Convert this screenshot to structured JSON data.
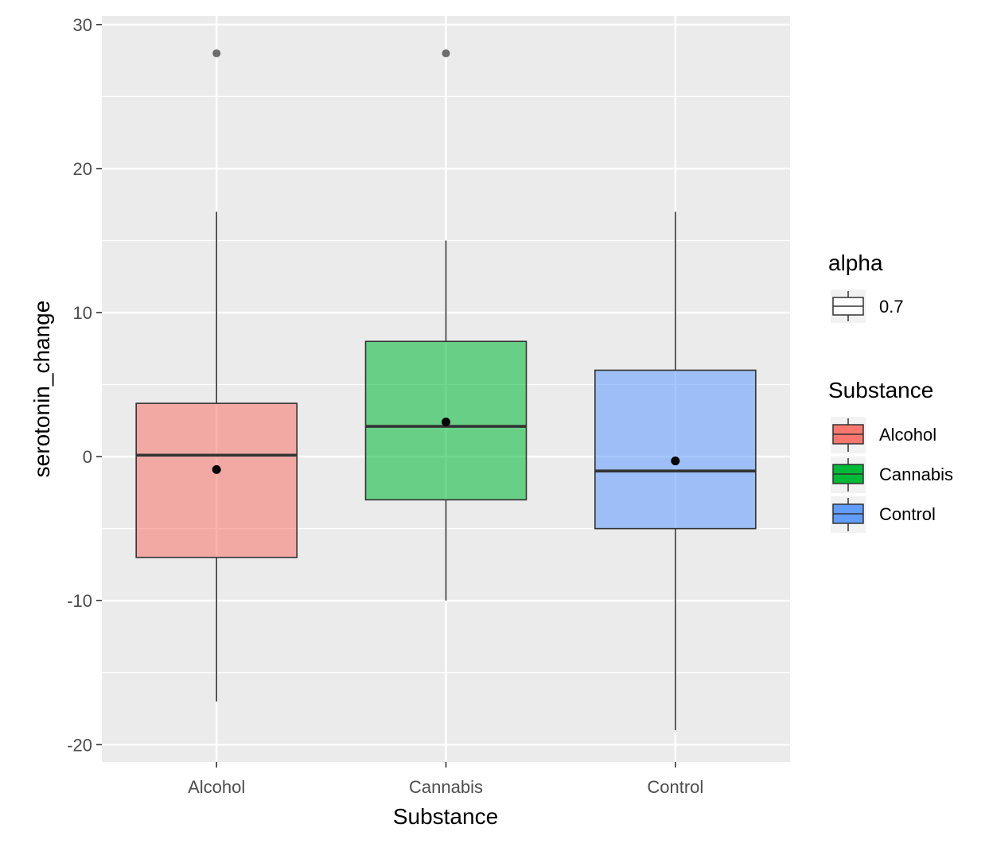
{
  "chart_data": {
    "type": "boxplot",
    "title": "",
    "xlabel": "Substance",
    "ylabel": "serotonin_change",
    "ylim": [
      -21.2,
      30.6
    ],
    "y_ticks": [
      -20,
      -10,
      0,
      10,
      20,
      30
    ],
    "y_tick_labels": [
      "-20",
      "-10",
      "0",
      "10",
      "20",
      "30"
    ],
    "grid": true,
    "background": "#ebebeb",
    "categories": [
      "Alcohol",
      "Cannabis",
      "Control"
    ],
    "boxes": [
      {
        "category": "Alcohol",
        "whisker_low": -17,
        "q1": -7,
        "median": 0.1,
        "q3": 3.7,
        "whisker_high": 17,
        "mean": -0.9,
        "outliers": [
          28
        ],
        "color": "#f8766d"
      },
      {
        "category": "Cannabis",
        "whisker_low": -10,
        "q1": -3,
        "median": 2.1,
        "q3": 8,
        "whisker_high": 15,
        "mean": 2.4,
        "outliers": [
          28
        ],
        "color": "#00ba38"
      },
      {
        "category": "Control",
        "whisker_low": -19,
        "q1": -5,
        "median": -1,
        "q3": 6,
        "whisker_high": 17,
        "mean": -0.3,
        "outliers": [],
        "color": "#619cff"
      }
    ],
    "box_opacity": 0.7,
    "legends": [
      {
        "title": "alpha",
        "entries": [
          {
            "label": "0.7",
            "color": "#ffffff"
          }
        ]
      },
      {
        "title": "Substance",
        "position": "right",
        "entries": [
          {
            "label": "Alcohol",
            "color": "#f8766d"
          },
          {
            "label": "Cannabis",
            "color": "#00ba38"
          },
          {
            "label": "Control",
            "color": "#619cff"
          }
        ]
      }
    ]
  }
}
